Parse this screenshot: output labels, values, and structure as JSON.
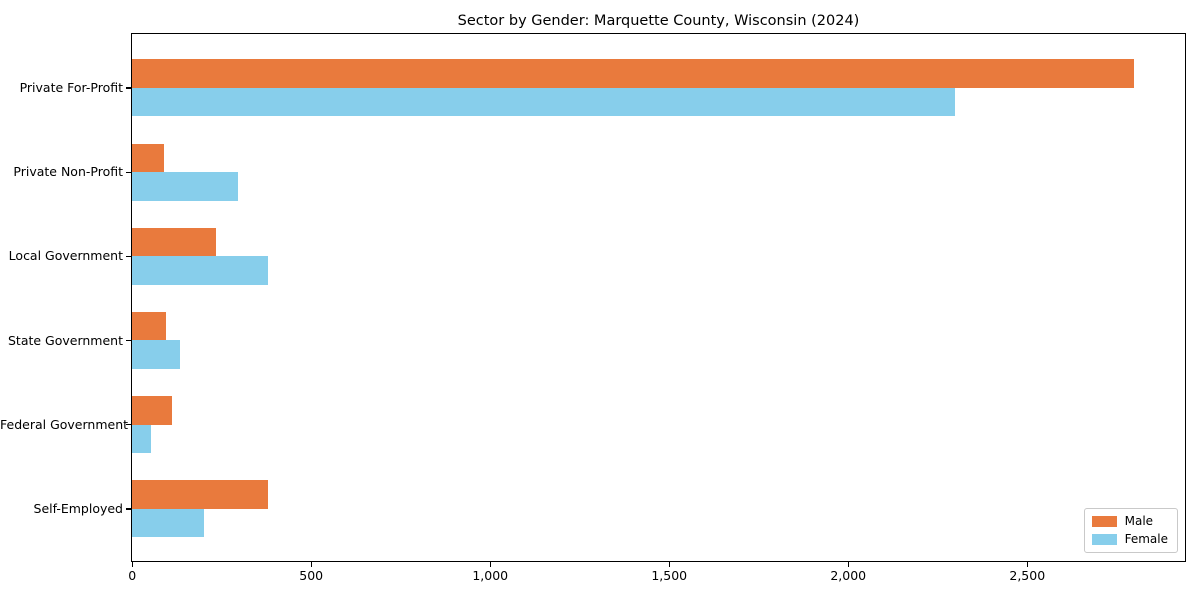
{
  "chart_data": {
    "type": "bar",
    "orientation": "horizontal",
    "title": "Sector by Gender: Marquette County, Wisconsin (2024)",
    "categories": [
      "Private For-Profit",
      "Private Non-Profit",
      "Local Government",
      "State Government",
      "Federal Government",
      "Self-Employed"
    ],
    "series": [
      {
        "name": "Male",
        "color": "#e97a3d",
        "values": [
          2800,
          90,
          236,
          94,
          111,
          380
        ]
      },
      {
        "name": "Female",
        "color": "#87ceeb",
        "values": [
          2300,
          295,
          379,
          134,
          54,
          201
        ]
      }
    ],
    "xlabel": "",
    "ylabel": "",
    "xlim": [
      0,
      2940
    ],
    "xticks": [
      {
        "value": 0,
        "label": "0"
      },
      {
        "value": 500,
        "label": "500"
      },
      {
        "value": 1000,
        "label": "1,000"
      },
      {
        "value": 1500,
        "label": "1,500"
      },
      {
        "value": 2000,
        "label": "2,000"
      },
      {
        "value": 2500,
        "label": "2,500"
      }
    ],
    "grid": false,
    "legend": {
      "position": "lower right",
      "entries": [
        "Male",
        "Female"
      ]
    }
  },
  "colors": {
    "male": "#e97a3d",
    "female": "#87ceeb",
    "spine": "#000000",
    "background": "#ffffff",
    "legend_border": "#c9c9c9"
  }
}
